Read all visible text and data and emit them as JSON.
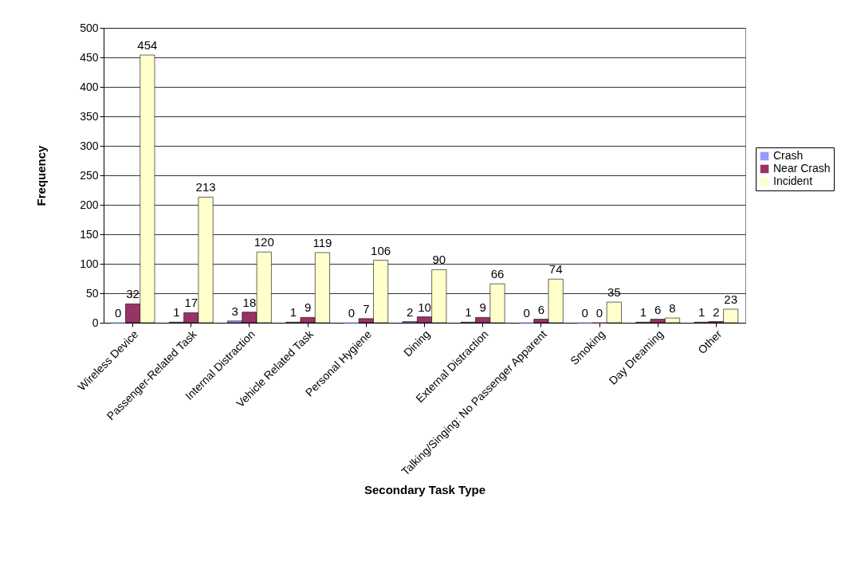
{
  "chart_data": {
    "type": "bar",
    "xlabel": "Secondary Task Type",
    "ylabel": "Frequency",
    "categories": [
      "Wireless Device",
      "Passenger-Related  Task",
      "Internal Distraction",
      "Vehicle Related Task",
      "Personal Hygiene",
      "Dining",
      "External Distraction",
      "Talking/Singing: No Passenger Apparent",
      "Smoking",
      "Day Dreaming",
      "Other"
    ],
    "series": [
      {
        "name": "Crash",
        "color": "#9999ff",
        "values": [
          0,
          1,
          3,
          1,
          0,
          2,
          1,
          0,
          0,
          1,
          1
        ]
      },
      {
        "name": "Near Crash",
        "color": "#993366",
        "values": [
          32,
          17,
          18,
          9,
          7,
          10,
          9,
          6,
          0,
          6,
          2
        ]
      },
      {
        "name": "Incident",
        "color": "#ffffcc",
        "values": [
          454,
          213,
          120,
          119,
          106,
          90,
          66,
          74,
          35,
          8,
          23
        ]
      }
    ],
    "ylim": [
      0,
      500
    ],
    "yticks": [
      0,
      50,
      100,
      150,
      200,
      250,
      300,
      350,
      400,
      450,
      500
    ],
    "grid": "y",
    "legend": "right",
    "data_labels": true
  }
}
